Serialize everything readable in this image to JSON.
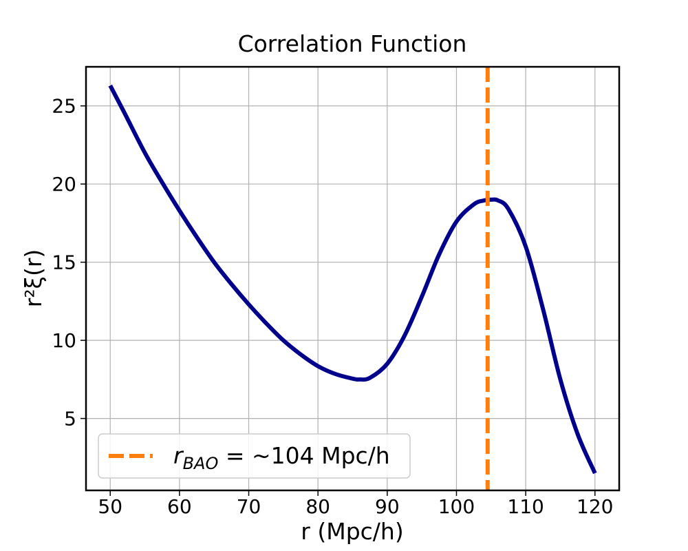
{
  "chart_data": {
    "type": "line",
    "title": "Correlation Function",
    "xlabel": "r (Mpc/h)",
    "ylabel": "r²ξ(r)",
    "xlim": [
      46.5,
      123.5
    ],
    "ylim": [
      0.4,
      27.5
    ],
    "xticks": [
      50,
      60,
      70,
      80,
      90,
      100,
      110,
      120
    ],
    "yticks": [
      5,
      10,
      15,
      20,
      25
    ],
    "grid": true,
    "legend_position": "lower-left",
    "series": [
      {
        "color": "#00008b",
        "x": [
          50,
          52,
          55,
          57.5,
          60,
          62.5,
          65,
          67.5,
          70,
          72.5,
          75,
          77.5,
          80,
          82.5,
          85,
          86,
          87.5,
          90,
          92.5,
          95,
          97.5,
          100,
          102.5,
          104,
          105,
          106,
          107.5,
          110,
          112.5,
          115,
          117.5,
          120
        ],
        "y": [
          26.3,
          24.6,
          22.0,
          20.1,
          18.3,
          16.6,
          15.0,
          13.6,
          12.3,
          11.1,
          10.0,
          9.1,
          8.35,
          7.85,
          7.55,
          7.5,
          7.6,
          8.5,
          10.3,
          12.8,
          15.5,
          17.6,
          18.7,
          18.95,
          19.0,
          18.95,
          18.4,
          16.0,
          12.0,
          7.5,
          4.0,
          1.5
        ]
      }
    ],
    "vline": {
      "x": 104.5,
      "color": "#ff7f0e",
      "style": "dashed",
      "label_main": "r",
      "label_sub": "BAO",
      "label_rest": " = ~104 Mpc/h"
    }
  }
}
